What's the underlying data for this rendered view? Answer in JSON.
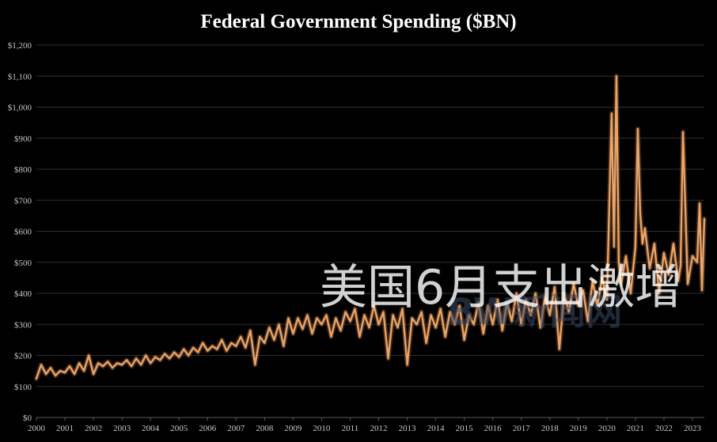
{
  "chart_data": {
    "type": "line",
    "title": "Federal Government Spending ($BN)",
    "xlabel": "",
    "ylabel": "",
    "ylim": [
      0,
      1200
    ],
    "xlim": [
      "2000-01",
      "2023-06"
    ],
    "y_ticks": [
      "$0",
      "$100",
      "$200",
      "$300",
      "$400",
      "$500",
      "$600",
      "$700",
      "$800",
      "$900",
      "$1,000",
      "$1,100",
      "$1,200"
    ],
    "x_ticks": [
      "2000",
      "2001",
      "2002",
      "2003",
      "2004",
      "2005",
      "2006",
      "2007",
      "2008",
      "2009",
      "2010",
      "2011",
      "2012",
      "2013",
      "2014",
      "2015",
      "2016",
      "2017",
      "2018",
      "2019",
      "2020",
      "2021",
      "2022",
      "2023"
    ],
    "grid": true,
    "legend": "none",
    "series": [
      {
        "color": "#e8a46a",
        "x": [
          "2000-01",
          "2000-03",
          "2000-05",
          "2000-07",
          "2000-09",
          "2000-11",
          "2001-01",
          "2001-03",
          "2001-05",
          "2001-07",
          "2001-09",
          "2001-11",
          "2002-01",
          "2002-03",
          "2002-05",
          "2002-07",
          "2002-09",
          "2002-11",
          "2003-01",
          "2003-03",
          "2003-05",
          "2003-07",
          "2003-09",
          "2003-11",
          "2004-01",
          "2004-03",
          "2004-05",
          "2004-07",
          "2004-09",
          "2004-11",
          "2005-01",
          "2005-03",
          "2005-05",
          "2005-07",
          "2005-09",
          "2005-11",
          "2006-01",
          "2006-03",
          "2006-05",
          "2006-07",
          "2006-09",
          "2006-11",
          "2007-01",
          "2007-03",
          "2007-05",
          "2007-07",
          "2007-09",
          "2007-11",
          "2008-01",
          "2008-03",
          "2008-05",
          "2008-07",
          "2008-09",
          "2008-11",
          "2009-01",
          "2009-03",
          "2009-05",
          "2009-07",
          "2009-09",
          "2009-11",
          "2010-01",
          "2010-03",
          "2010-05",
          "2010-07",
          "2010-09",
          "2010-11",
          "2011-01",
          "2011-03",
          "2011-05",
          "2011-07",
          "2011-09",
          "2011-11",
          "2012-01",
          "2012-03",
          "2012-05",
          "2012-07",
          "2012-09",
          "2012-11",
          "2013-01",
          "2013-03",
          "2013-05",
          "2013-07",
          "2013-09",
          "2013-11",
          "2014-01",
          "2014-03",
          "2014-05",
          "2014-07",
          "2014-09",
          "2014-11",
          "2015-01",
          "2015-03",
          "2015-05",
          "2015-07",
          "2015-09",
          "2015-11",
          "2016-01",
          "2016-03",
          "2016-05",
          "2016-07",
          "2016-09",
          "2016-11",
          "2017-01",
          "2017-03",
          "2017-05",
          "2017-07",
          "2017-09",
          "2017-11",
          "2018-01",
          "2018-03",
          "2018-05",
          "2018-07",
          "2018-09",
          "2018-11",
          "2019-01",
          "2019-03",
          "2019-05",
          "2019-07",
          "2019-09",
          "2019-11",
          "2020-01",
          "2020-03",
          "2020-04",
          "2020-05",
          "2020-06",
          "2020-07",
          "2020-09",
          "2020-11",
          "2021-01",
          "2021-02",
          "2021-03",
          "2021-04",
          "2021-05",
          "2021-07",
          "2021-09",
          "2021-11",
          "2022-01",
          "2022-03",
          "2022-05",
          "2022-07",
          "2022-08",
          "2022-09",
          "2022-11",
          "2023-01",
          "2023-03",
          "2023-04",
          "2023-05",
          "2023-06"
        ],
        "values": [
          125,
          170,
          140,
          160,
          135,
          150,
          145,
          165,
          140,
          175,
          150,
          200,
          140,
          175,
          165,
          180,
          160,
          175,
          170,
          185,
          165,
          190,
          170,
          200,
          175,
          195,
          185,
          205,
          190,
          210,
          195,
          220,
          200,
          225,
          210,
          240,
          215,
          230,
          220,
          250,
          215,
          240,
          230,
          260,
          225,
          280,
          170,
          260,
          240,
          290,
          250,
          300,
          230,
          320,
          270,
          320,
          285,
          330,
          270,
          320,
          300,
          330,
          260,
          320,
          280,
          340,
          310,
          350,
          260,
          330,
          290,
          360,
          300,
          340,
          190,
          330,
          290,
          350,
          170,
          320,
          300,
          340,
          240,
          330,
          290,
          350,
          260,
          340,
          300,
          360,
          250,
          330,
          300,
          370,
          270,
          360,
          300,
          380,
          280,
          370,
          310,
          400,
          300,
          380,
          330,
          400,
          290,
          390,
          330,
          420,
          220,
          400,
          340,
          430,
          360,
          410,
          310,
          440,
          360,
          450,
          380,
          980,
          550,
          1100,
          500,
          430,
          520,
          400,
          550,
          930,
          660,
          560,
          610,
          480,
          560,
          400,
          530,
          460,
          560,
          440,
          490,
          920,
          430,
          520,
          500,
          690,
          410,
          640
        ]
      }
    ]
  },
  "overlay": {
    "caption": "美国6月支出激增",
    "watermark": "BW新闻网"
  }
}
